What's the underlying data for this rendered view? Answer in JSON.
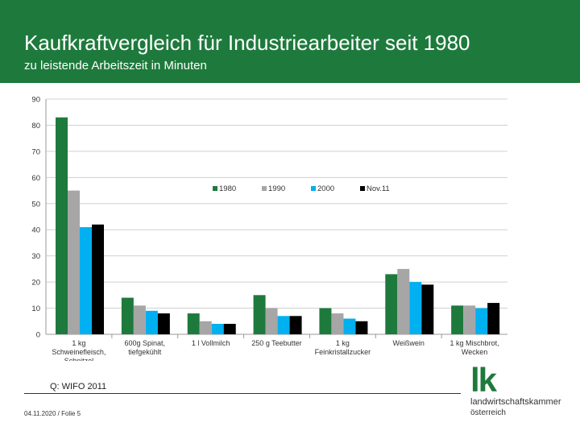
{
  "header": {
    "title": "Kaufkraftvergleich für Industriearbeiter seit 1980",
    "subtitle": "zu leistende Arbeitszeit in Minuten"
  },
  "source": "Q: WIFO 2011",
  "footer": "04.11.2020 / Folie 5",
  "logo": {
    "mark": "lk",
    "line1": "landwirtschaftskammer",
    "line2": "österreich"
  },
  "colors": {
    "header_bg": "#1e7a3c",
    "s1980": "#1e7a3c",
    "s1990": "#a6a6a6",
    "s2000": "#00b0f0",
    "snov11": "#000000"
  },
  "chart_data": {
    "type": "bar",
    "categories": [
      [
        "1 kg",
        "Schweinefleisch,",
        "Schnitzel"
      ],
      [
        "600g Spinat,",
        "tiefgekühlt"
      ],
      [
        "1 l Vollmilch"
      ],
      [
        "250 g Teebutter"
      ],
      [
        "1 kg",
        "Feinkristallzucker"
      ],
      [
        "Weißwein"
      ],
      [
        "1 kg Mischbrot,",
        "Wecken"
      ]
    ],
    "series": [
      {
        "name": "1980",
        "color": "#1e7a3c",
        "values": [
          83,
          14,
          8,
          15,
          10,
          23,
          11
        ]
      },
      {
        "name": "1990",
        "color": "#a6a6a6",
        "values": [
          55,
          11,
          5,
          10,
          8,
          25,
          11
        ]
      },
      {
        "name": "2000",
        "color": "#00b0f0",
        "values": [
          41,
          9,
          4,
          7,
          6,
          20,
          10
        ]
      },
      {
        "name": "Nov.11",
        "color": "#000000",
        "values": [
          42,
          8,
          4,
          7,
          5,
          19,
          12
        ]
      }
    ],
    "ylim": [
      0,
      90
    ],
    "yticks": [
      0,
      10,
      20,
      30,
      40,
      50,
      60,
      70,
      80,
      90
    ],
    "grid": true,
    "legend": "inside-center-right"
  }
}
